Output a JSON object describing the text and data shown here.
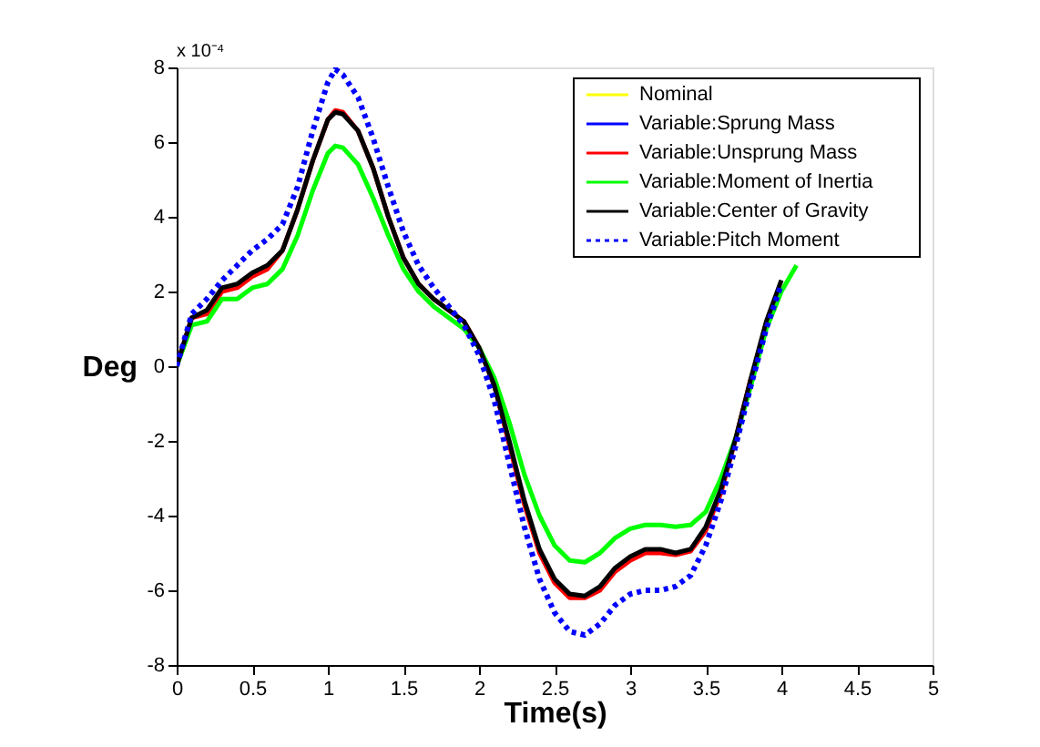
{
  "chart_data": {
    "type": "line",
    "xlabel": "Time(s)",
    "ylabel": "Deg",
    "annotations": [
      "x 10⁻⁴"
    ],
    "xlim": [
      0,
      5
    ],
    "xticks": [
      0,
      0.5,
      1,
      1.5,
      2,
      2.5,
      3,
      3.5,
      4,
      4.5,
      5
    ],
    "ylim": [
      -8,
      8
    ],
    "yticks": [
      -8,
      -6,
      -4,
      -2,
      0,
      2,
      4,
      6,
      8
    ],
    "legend": "top right",
    "grid": false,
    "x": [
      0,
      0.1,
      0.2,
      0.3,
      0.4,
      0.5,
      0.6,
      0.7,
      0.8,
      0.9,
      1.0,
      1.05,
      1.1,
      1.2,
      1.3,
      1.4,
      1.5,
      1.6,
      1.7,
      1.8,
      1.9,
      2.0,
      2.1,
      2.2,
      2.3,
      2.4,
      2.5,
      2.6,
      2.7,
      2.8,
      2.9,
      3.0,
      3.1,
      3.2,
      3.3,
      3.4,
      3.5,
      3.6,
      3.7,
      3.8,
      3.9,
      4.0,
      4.1
    ],
    "series": [
      {
        "name": "Nominal",
        "color": "#ffff00",
        "line_style": "solid",
        "values": [
          null,
          null,
          null,
          null,
          null,
          null,
          null,
          null,
          null,
          null,
          null,
          null,
          null,
          null,
          null,
          null,
          null,
          null,
          null,
          null,
          null,
          null,
          null,
          null,
          null,
          null,
          null,
          null,
          null,
          null,
          null,
          null,
          null,
          null,
          null,
          null,
          null,
          null,
          null,
          null,
          null,
          null,
          null
        ]
      },
      {
        "name": "Variable:Sprung Mass",
        "color": "#0000ff",
        "line_style": "solid",
        "values": [
          null,
          null,
          null,
          null,
          null,
          null,
          null,
          null,
          null,
          null,
          null,
          null,
          null,
          null,
          null,
          null,
          null,
          null,
          null,
          null,
          null,
          null,
          null,
          null,
          null,
          null,
          null,
          null,
          null,
          null,
          null,
          null,
          null,
          null,
          null,
          null,
          null,
          null,
          null,
          null,
          null,
          null,
          null
        ]
      },
      {
        "name": "Variable:Unsprung Mass",
        "color": "#ff0000",
        "line_style": "solid",
        "values": [
          0,
          1.3,
          1.4,
          2.0,
          2.1,
          2.4,
          2.6,
          3.1,
          4.2,
          5.5,
          6.6,
          6.85,
          6.8,
          6.3,
          5.3,
          4.0,
          2.9,
          2.2,
          1.8,
          1.5,
          1.2,
          0.5,
          -0.5,
          -2.1,
          -3.7,
          -5.0,
          -5.8,
          -6.2,
          -6.2,
          -6.0,
          -5.5,
          -5.2,
          -5.0,
          -5.0,
          -5.05,
          -4.95,
          -4.4,
          -3.4,
          -1.9,
          -0.3,
          null,
          null,
          null
        ]
      },
      {
        "name": "Variable:Moment of Inertia",
        "color": "#00ff00",
        "line_style": "solid",
        "values": [
          0,
          1.1,
          1.2,
          1.8,
          1.8,
          2.1,
          2.2,
          2.6,
          3.5,
          4.7,
          5.7,
          5.9,
          5.85,
          5.4,
          4.5,
          3.5,
          2.6,
          2.0,
          1.6,
          1.3,
          1.0,
          0.5,
          -0.3,
          -1.5,
          -2.9,
          -4.0,
          -4.8,
          -5.2,
          -5.25,
          -5.0,
          -4.6,
          -4.35,
          -4.25,
          -4.25,
          -4.3,
          -4.25,
          -3.9,
          -3.0,
          -1.9,
          -0.5,
          1.0,
          2.0,
          2.7
        ]
      },
      {
        "name": "Variable:Center of Gravity",
        "color": "#000000",
        "line_style": "solid",
        "values": [
          0,
          1.3,
          1.5,
          2.1,
          2.2,
          2.5,
          2.7,
          3.1,
          4.2,
          5.5,
          6.6,
          6.8,
          6.75,
          6.3,
          5.3,
          4.0,
          2.9,
          2.2,
          1.8,
          1.5,
          1.2,
          0.5,
          -0.5,
          -2.0,
          -3.6,
          -4.9,
          -5.7,
          -6.1,
          -6.15,
          -5.9,
          -5.4,
          -5.1,
          -4.9,
          -4.9,
          -5.0,
          -4.9,
          -4.3,
          -3.3,
          -1.9,
          -0.3,
          1.2,
          2.3,
          null
        ]
      },
      {
        "name": "Variable:Pitch Moment",
        "color": "#0000ff",
        "line_style": "dotted",
        "values": [
          0,
          1.4,
          1.8,
          2.3,
          2.7,
          3.1,
          3.4,
          3.8,
          4.8,
          6.3,
          7.6,
          7.95,
          7.8,
          7.2,
          6.1,
          4.8,
          3.6,
          2.7,
          2.1,
          1.6,
          1.1,
          0.3,
          -0.9,
          -2.6,
          -4.3,
          -5.7,
          -6.6,
          -7.1,
          -7.2,
          -6.9,
          -6.4,
          -6.1,
          -6.0,
          -6.0,
          -5.9,
          -5.6,
          -4.8,
          -3.6,
          -2.1,
          -0.5,
          1.0,
          2.2,
          null
        ]
      }
    ]
  }
}
